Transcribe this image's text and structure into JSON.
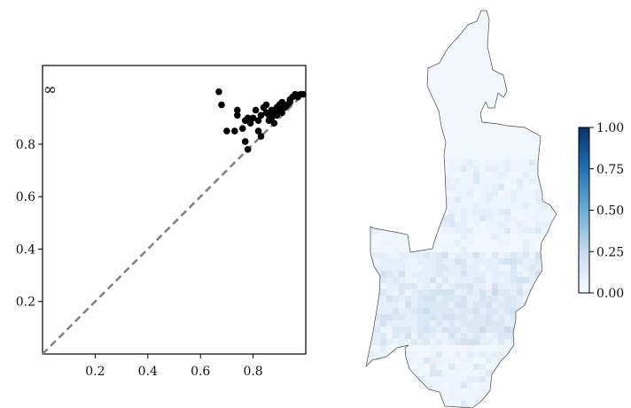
{
  "chart_data": [
    {
      "type": "scatter",
      "title": "",
      "xlabel": "",
      "ylabel": "",
      "xlim": [
        0.0,
        1.0
      ],
      "ylim": [
        0.0,
        1.1
      ],
      "x_ticks": [
        0.2,
        0.4,
        0.6,
        0.8
      ],
      "x_tick_labels": [
        "0.2",
        "0.4",
        "0.6",
        "0.8"
      ],
      "y_ticks": [
        0.2,
        0.4,
        0.6,
        0.8
      ],
      "y_tick_labels": [
        "0.2",
        "0.4",
        "0.6",
        "0.8"
      ],
      "annotation": "∞",
      "reference_line": {
        "style": "dashed",
        "color": "#808080",
        "from": [
          0.0,
          0.0
        ],
        "to": [
          1.0,
          1.0
        ]
      },
      "point_color": "#000000",
      "points": [
        [
          0.67,
          1.0
        ],
        [
          0.68,
          0.95
        ],
        [
          0.7,
          0.85
        ],
        [
          0.73,
          0.85
        ],
        [
          0.74,
          0.91
        ],
        [
          0.74,
          0.93
        ],
        [
          0.76,
          0.86
        ],
        [
          0.77,
          0.89
        ],
        [
          0.77,
          0.81
        ],
        [
          0.78,
          0.9
        ],
        [
          0.78,
          0.78
        ],
        [
          0.79,
          0.88
        ],
        [
          0.8,
          0.9
        ],
        [
          0.81,
          0.93
        ],
        [
          0.82,
          0.89
        ],
        [
          0.82,
          0.85
        ],
        [
          0.83,
          0.83
        ],
        [
          0.83,
          0.91
        ],
        [
          0.84,
          0.94
        ],
        [
          0.85,
          0.92
        ],
        [
          0.85,
          0.95
        ],
        [
          0.86,
          0.89
        ],
        [
          0.86,
          0.91
        ],
        [
          0.87,
          0.93
        ],
        [
          0.87,
          0.9
        ],
        [
          0.88,
          0.92
        ],
        [
          0.88,
          0.88
        ],
        [
          0.89,
          0.91
        ],
        [
          0.89,
          0.94
        ],
        [
          0.9,
          0.93
        ],
        [
          0.9,
          0.95
        ],
        [
          0.91,
          0.92
        ],
        [
          0.91,
          0.96
        ],
        [
          0.92,
          0.94
        ],
        [
          0.93,
          0.95
        ],
        [
          0.94,
          0.96
        ],
        [
          0.94,
          0.97
        ],
        [
          0.95,
          0.98
        ],
        [
          0.96,
          0.99
        ],
        [
          0.97,
          0.98
        ],
        [
          0.98,
          0.99
        ],
        [
          0.99,
          0.99
        ]
      ]
    },
    {
      "type": "heatmap",
      "title": "",
      "colormap": "Blues",
      "colorbar_range": [
        0.0,
        1.0
      ],
      "colorbar_ticks": [
        "0.00",
        "0.25",
        "0.50",
        "0.75",
        "1.00"
      ],
      "colors": {
        "low": "#f7fbff",
        "mid": "#6baed6",
        "high": "#08306b",
        "outline": "#4a4a4a"
      }
    }
  ]
}
